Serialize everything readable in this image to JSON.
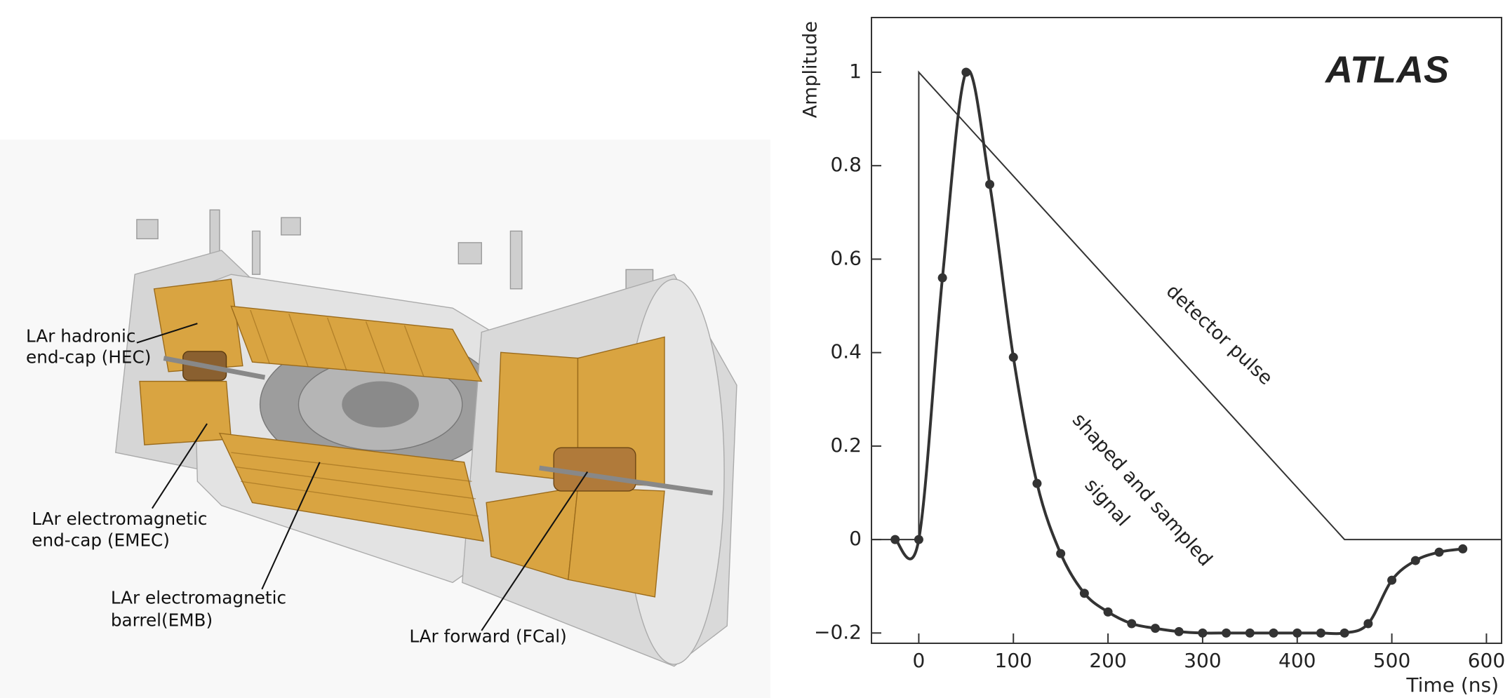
{
  "illustration": {
    "labels": [
      [
        "LAr hadronic",
        "end-cap (HEC)"
      ],
      [
        "LAr electromagnetic",
        "end-cap (EMEC)"
      ],
      [
        "LAr electromagnetic",
        "barrel(EMB)"
      ],
      [
        "LAr forward (FCal)"
      ]
    ]
  },
  "chart_data": {
    "type": "line",
    "x_label": "Time (ns)",
    "y_label": "Amplitude",
    "annotations": [
      "ATLAS",
      "detector pulse",
      "shaped and sampled",
      "signal"
    ],
    "xlim": [
      -50,
      616
    ],
    "ylim": [
      -0.222,
      1.117
    ],
    "xticks": [
      0,
      100,
      200,
      300,
      400,
      500,
      600
    ],
    "yticks": [
      {
        "value": -0.2,
        "label": "−0.2"
      },
      0,
      0.2,
      0.4,
      0.6,
      0.8,
      1
    ],
    "series": [
      {
        "color": "#333333",
        "x": [
          -50,
          0,
          0,
          450,
          616
        ],
        "values": [
          0,
          0,
          1,
          0,
          0
        ]
      },
      {
        "color": "#333333",
        "smooth": true,
        "markers": true,
        "x": [
          -25,
          0,
          25,
          50,
          75,
          100,
          125,
          150,
          175,
          200,
          225,
          250,
          275,
          300,
          325,
          350,
          375,
          400,
          425,
          450,
          475,
          500,
          525,
          550,
          575
        ],
        "values": [
          0,
          0,
          0.56,
          1.0,
          0.76,
          0.39,
          0.12,
          -0.03,
          -0.115,
          -0.155,
          -0.18,
          -0.19,
          -0.197,
          -0.2,
          -0.2,
          -0.2,
          -0.2,
          -0.2,
          -0.2,
          -0.2,
          -0.18,
          -0.087,
          -0.045,
          -0.027,
          -0.02
        ]
      }
    ]
  }
}
